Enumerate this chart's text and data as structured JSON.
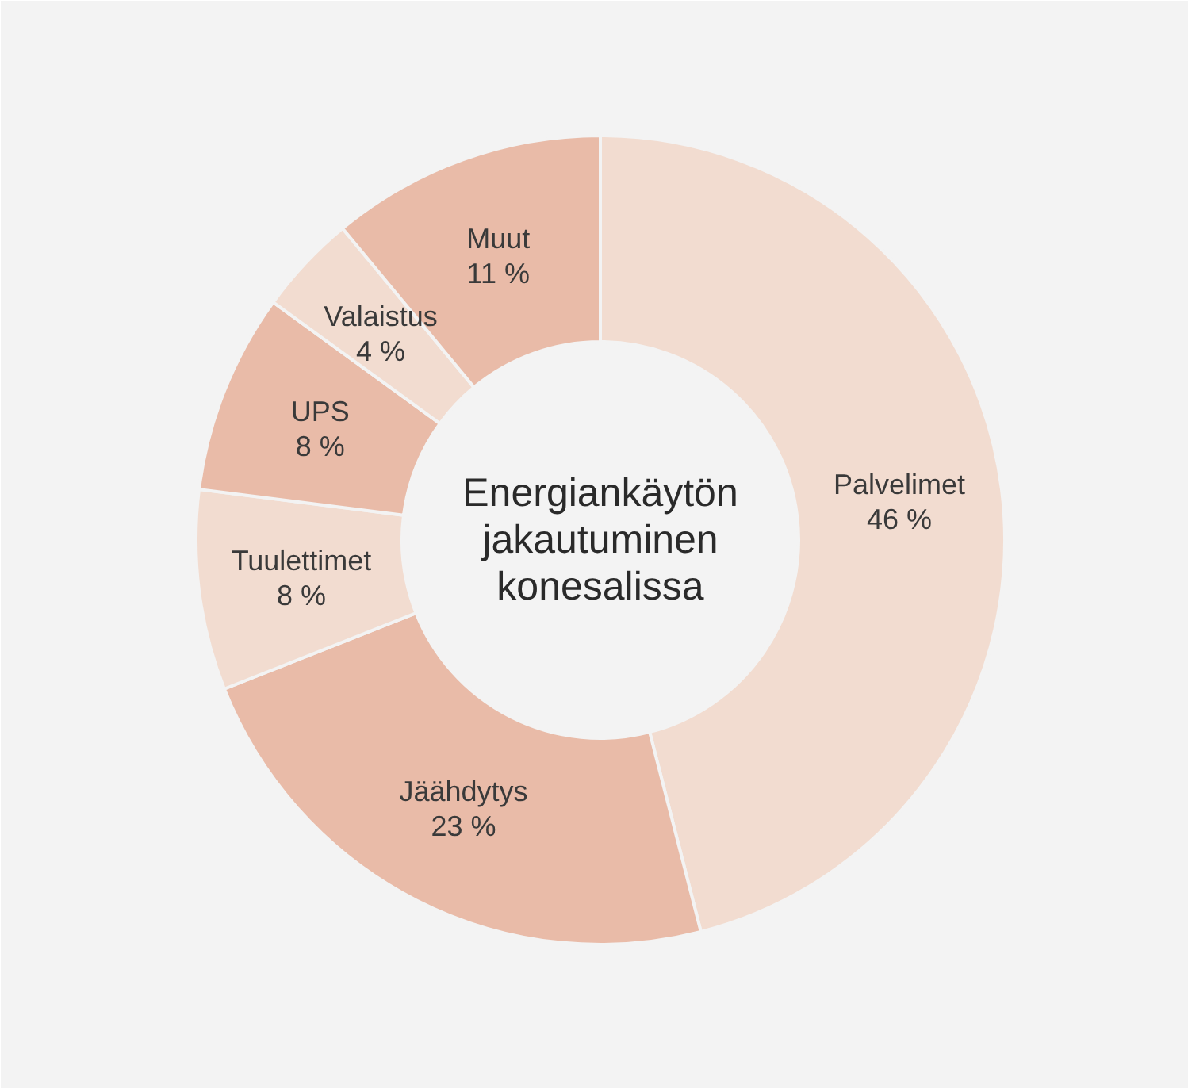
{
  "chart_data": {
    "type": "donut",
    "title": "Energiankäytön\njakautuminen\nkonesalissa",
    "categories": [
      "Palvelimet",
      "Jäähdytys",
      "Tuulettimet",
      "UPS",
      "Valaistus",
      "Muut"
    ],
    "values": [
      46,
      23,
      8,
      8,
      4,
      11
    ],
    "value_labels": [
      "46 %",
      "23 %",
      "8 %",
      "8 %",
      "4 %",
      "11 %"
    ],
    "colors": [
      "#f2dcd0",
      "#e9bba8",
      "#f2dcd0",
      "#e9bba8",
      "#f2dcd0",
      "#e9bba8"
    ]
  }
}
